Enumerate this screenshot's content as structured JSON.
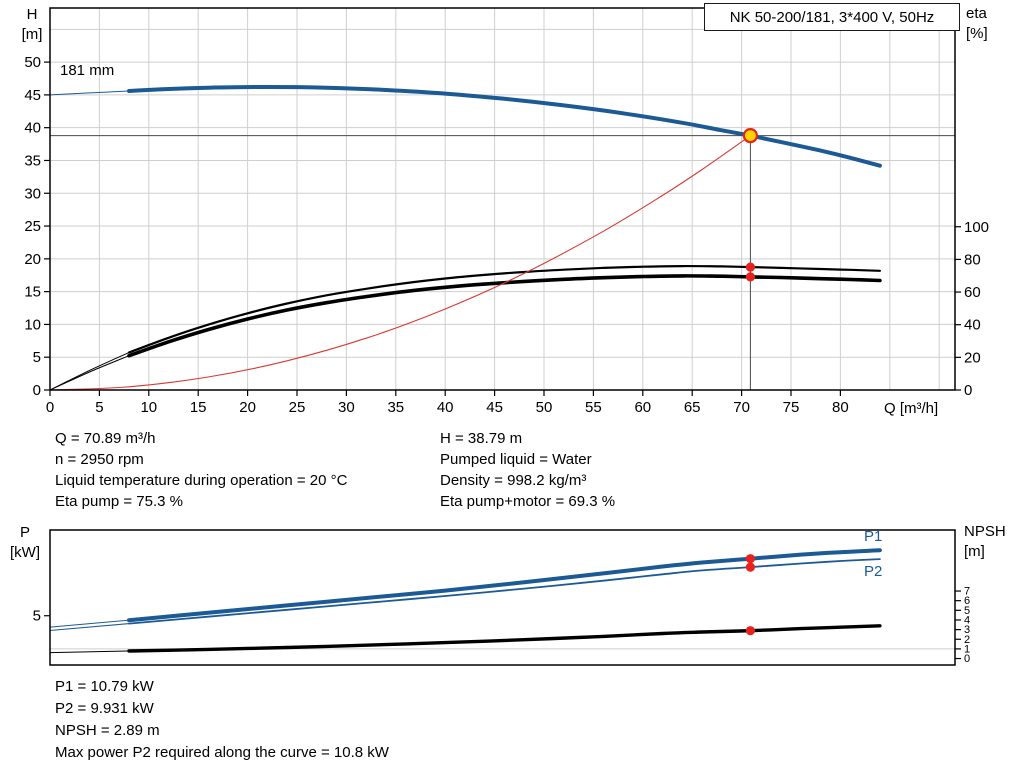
{
  "title": "NK 50-200/181, 3*400 V, 50Hz",
  "axis_labels": {
    "head": "H",
    "head_unit": "[m]",
    "eta": "eta",
    "eta_unit": "[%]",
    "flow": "Q [m³/h]",
    "power": "P",
    "power_unit": "[kW]",
    "npsh": "NPSH",
    "npsh_unit": "[m]"
  },
  "curve_labels": {
    "impeller": "181 mm",
    "p1": "P1",
    "p2": "P2"
  },
  "annotations": {
    "mid_left": [
      "Q = 70.89 m³/h",
      "n = 2950 rpm",
      "Liquid temperature during operation = 20 °C",
      "Eta pump = 75.3 %"
    ],
    "mid_right": [
      "H = 38.79 m",
      "Pumped liquid = Water",
      "Density = 998.2 kg/m³",
      "Eta pump+motor = 69.3 %"
    ],
    "bottom": [
      "P1 = 10.79 kW",
      "P2 = 9.931 kW",
      "NPSH = 2.89 m",
      "Max power P2 required along the curve = 10.8 kW"
    ]
  },
  "colors": {
    "curve_blue": "#1c5a96",
    "curve_black": "#000000",
    "curve_red": "#d93a34",
    "dot_red": "#e8211d",
    "duty_fill": "#ffd400",
    "grid": "#cfcfcf",
    "ref_line": "#4a4a4a",
    "axis": "#000000"
  },
  "chart_data": [
    {
      "type": "line",
      "name": "qh-eta-chart",
      "title": "NK 50-200/181, 3*400 V, 50Hz",
      "x_axis": {
        "label": "Q [m³/h]",
        "min": 0,
        "max": 91.6,
        "grid_step": 5,
        "label_max": 80
      },
      "y_left": {
        "label": "H [m]",
        "min": 0,
        "max": 58.25,
        "grid_step": 5,
        "label_max": 50
      },
      "y_right": {
        "label": "eta [%]",
        "min": 0,
        "max": 234,
        "ticks": [
          0,
          20,
          40,
          60,
          80,
          100
        ]
      },
      "duty_point": {
        "q": 70.89,
        "h": 38.79
      },
      "series": [
        {
          "name": "pump-curve-181mm",
          "label": "181 mm",
          "axis": "left",
          "color": "#1c5a96",
          "width": 4,
          "thin_until": 8,
          "points": [
            [
              0,
              45.0
            ],
            [
              4,
              45.3
            ],
            [
              8,
              45.6
            ],
            [
              12,
              45.9
            ],
            [
              16,
              46.1
            ],
            [
              22,
              46.2
            ],
            [
              28,
              46.1
            ],
            [
              34,
              45.75
            ],
            [
              40,
              45.2
            ],
            [
              46,
              44.4
            ],
            [
              52,
              43.4
            ],
            [
              58,
              42.2
            ],
            [
              64,
              40.75
            ],
            [
              68,
              39.6
            ],
            [
              70.89,
              38.79
            ],
            [
              74,
              37.8
            ],
            [
              78,
              36.5
            ],
            [
              81,
              35.4
            ],
            [
              84,
              34.2
            ]
          ]
        },
        {
          "name": "eta-pump-curve",
          "axis": "right",
          "color": "#000000",
          "width": 2.2,
          "thin_until": 8,
          "points": [
            [
              0,
              0
            ],
            [
              4,
              12
            ],
            [
              8,
              23
            ],
            [
              12,
              32
            ],
            [
              16,
              40
            ],
            [
              20,
              47
            ],
            [
              24,
              53
            ],
            [
              28,
              58
            ],
            [
              32,
              62
            ],
            [
              36,
              65.5
            ],
            [
              40,
              68.3
            ],
            [
              44,
              70.5
            ],
            [
              48,
              72.3
            ],
            [
              52,
              73.7
            ],
            [
              56,
              74.8
            ],
            [
              60,
              75.5
            ],
            [
              64,
              75.9
            ],
            [
              68,
              75.7
            ],
            [
              70.89,
              75.3
            ],
            [
              74,
              74.8
            ],
            [
              78,
              74.1
            ],
            [
              81,
              73.6
            ],
            [
              84,
              73.0
            ]
          ]
        },
        {
          "name": "eta-pump-motor-curve",
          "axis": "right",
          "color": "#000000",
          "width": 3.6,
          "thin_until": 8,
          "points": [
            [
              0,
              0
            ],
            [
              4,
              11
            ],
            [
              8,
              21
            ],
            [
              12,
              29.5
            ],
            [
              16,
              37
            ],
            [
              20,
              43.5
            ],
            [
              24,
              49
            ],
            [
              28,
              53.5
            ],
            [
              32,
              57.2
            ],
            [
              36,
              60.4
            ],
            [
              40,
              62.9
            ],
            [
              44,
              64.9
            ],
            [
              48,
              66.5
            ],
            [
              52,
              67.8
            ],
            [
              56,
              68.8
            ],
            [
              60,
              69.5
            ],
            [
              64,
              69.9
            ],
            [
              68,
              69.7
            ],
            [
              70.89,
              69.3
            ],
            [
              74,
              68.9
            ],
            [
              78,
              68.2
            ],
            [
              81,
              67.7
            ],
            [
              84,
              67.1
            ]
          ]
        },
        {
          "name": "system-curve",
          "axis": "left",
          "color": "#d93a34",
          "width": 1.1,
          "points": [
            [
              0,
              0
            ],
            [
              8,
              0.49
            ],
            [
              16,
              1.98
            ],
            [
              24,
              4.45
            ],
            [
              32,
              7.9
            ],
            [
              40,
              12.35
            ],
            [
              48,
              17.78
            ],
            [
              56,
              24.2
            ],
            [
              62,
              29.67
            ],
            [
              66,
              33.62
            ],
            [
              70.89,
              38.79
            ]
          ]
        }
      ],
      "ref_lines": [
        {
          "name": "head-ref-line",
          "type": "h",
          "axis": "left",
          "value": 38.79,
          "from": 0,
          "to": 91.6
        },
        {
          "name": "flow-ref-line",
          "type": "v",
          "value": 70.89,
          "from": 0,
          "to": 38.79
        }
      ],
      "markers": [
        {
          "name": "duty-point",
          "x": 70.89,
          "value": 38.79,
          "axis": "left",
          "kind": "duty"
        },
        {
          "name": "eta-pump-dot",
          "x": 70.89,
          "value": 75.3,
          "axis": "right",
          "kind": "dot"
        },
        {
          "name": "eta-pump-motor-dot",
          "x": 70.89,
          "value": 69.3,
          "axis": "right",
          "kind": "dot"
        }
      ]
    },
    {
      "type": "line",
      "name": "power-npsh-chart",
      "x_axis": {
        "min": 0,
        "max": 91.6
      },
      "y_left": {
        "label": "P [kW]",
        "min": 0,
        "max": 13.7,
        "ticks": [
          5
        ]
      },
      "y_right": {
        "label": "NPSH [m]",
        "min": -0.67,
        "max": 13.33,
        "ticks": [
          0,
          1,
          2,
          3,
          4,
          5,
          6,
          7
        ],
        "grid_ticks": [
          1
        ]
      },
      "series": [
        {
          "name": "p1-curve",
          "label": "P1",
          "axis": "left",
          "color": "#1c5a96",
          "width": 4,
          "thin_until": 8,
          "points": [
            [
              0,
              3.85
            ],
            [
              8,
              4.55
            ],
            [
              16,
              5.3
            ],
            [
              24,
              6.05
            ],
            [
              32,
              6.8
            ],
            [
              40,
              7.55
            ],
            [
              48,
              8.4
            ],
            [
              56,
              9.3
            ],
            [
              62,
              10.0
            ],
            [
              66,
              10.4
            ],
            [
              70.89,
              10.79
            ],
            [
              76,
              11.2
            ],
            [
              80,
              11.45
            ],
            [
              84,
              11.65
            ]
          ]
        },
        {
          "name": "p2-curve",
          "label": "P2",
          "axis": "left",
          "color": "#1c5a96",
          "width": 1.8,
          "thin_until": 8,
          "points": [
            [
              0,
              3.5
            ],
            [
              8,
              4.2
            ],
            [
              16,
              4.9
            ],
            [
              24,
              5.6
            ],
            [
              32,
              6.3
            ],
            [
              40,
              7.0
            ],
            [
              48,
              7.75
            ],
            [
              56,
              8.55
            ],
            [
              62,
              9.2
            ],
            [
              66,
              9.6
            ],
            [
              70.89,
              9.931
            ],
            [
              76,
              10.3
            ],
            [
              80,
              10.55
            ],
            [
              84,
              10.75
            ]
          ]
        },
        {
          "name": "npsh-curve",
          "axis": "right",
          "color": "#000000",
          "width": 3.4,
          "thin_until": 8,
          "points": [
            [
              0,
              0.62
            ],
            [
              8,
              0.78
            ],
            [
              16,
              0.95
            ],
            [
              24,
              1.15
            ],
            [
              32,
              1.38
            ],
            [
              40,
              1.65
            ],
            [
              48,
              1.95
            ],
            [
              56,
              2.3
            ],
            [
              62,
              2.6
            ],
            [
              66,
              2.75
            ],
            [
              70.89,
              2.89
            ],
            [
              76,
              3.1
            ],
            [
              80,
              3.25
            ],
            [
              84,
              3.4
            ]
          ]
        }
      ],
      "markers": [
        {
          "name": "p1-dot",
          "x": 70.89,
          "value": 10.79,
          "axis": "left",
          "kind": "dot"
        },
        {
          "name": "p2-dot",
          "x": 70.89,
          "value": 9.931,
          "axis": "left",
          "kind": "dot"
        },
        {
          "name": "npsh-dot",
          "x": 70.89,
          "value": 2.89,
          "axis": "right",
          "kind": "dot"
        }
      ]
    }
  ]
}
